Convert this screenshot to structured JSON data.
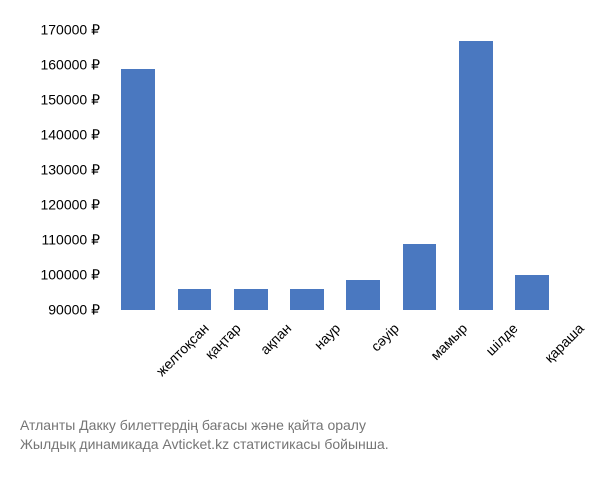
{
  "chart": {
    "type": "bar",
    "categories": [
      "желтоқсан",
      "қаңтар",
      "ақпан",
      "наур",
      "сәуір",
      "мамыр",
      "шілде",
      "қараша"
    ],
    "values": [
      159000,
      96000,
      96000,
      96000,
      98500,
      109000,
      167000,
      100000
    ],
    "bar_color": "#4a78c0",
    "ylim": [
      90000,
      170000
    ],
    "yticks": [
      90000,
      100000,
      110000,
      120000,
      130000,
      140000,
      150000,
      160000,
      170000
    ],
    "ytick_labels": [
      "90000 ₽",
      "100000 ₽",
      "110000 ₽",
      "120000 ₽",
      "130000 ₽",
      "140000 ₽",
      "150000 ₽",
      "160000 ₽",
      "170000 ₽"
    ],
    "background_color": "#ffffff",
    "bar_width_ratio": 0.6,
    "label_fontsize": 14,
    "tick_fontsize": 14
  },
  "caption": {
    "line1": "Атланты Дакку билеттердің бағасы және қайта оралу",
    "line2": "Жылдық динамикада Avticket.kz статистикасы бойынша.",
    "color": "#757575"
  }
}
